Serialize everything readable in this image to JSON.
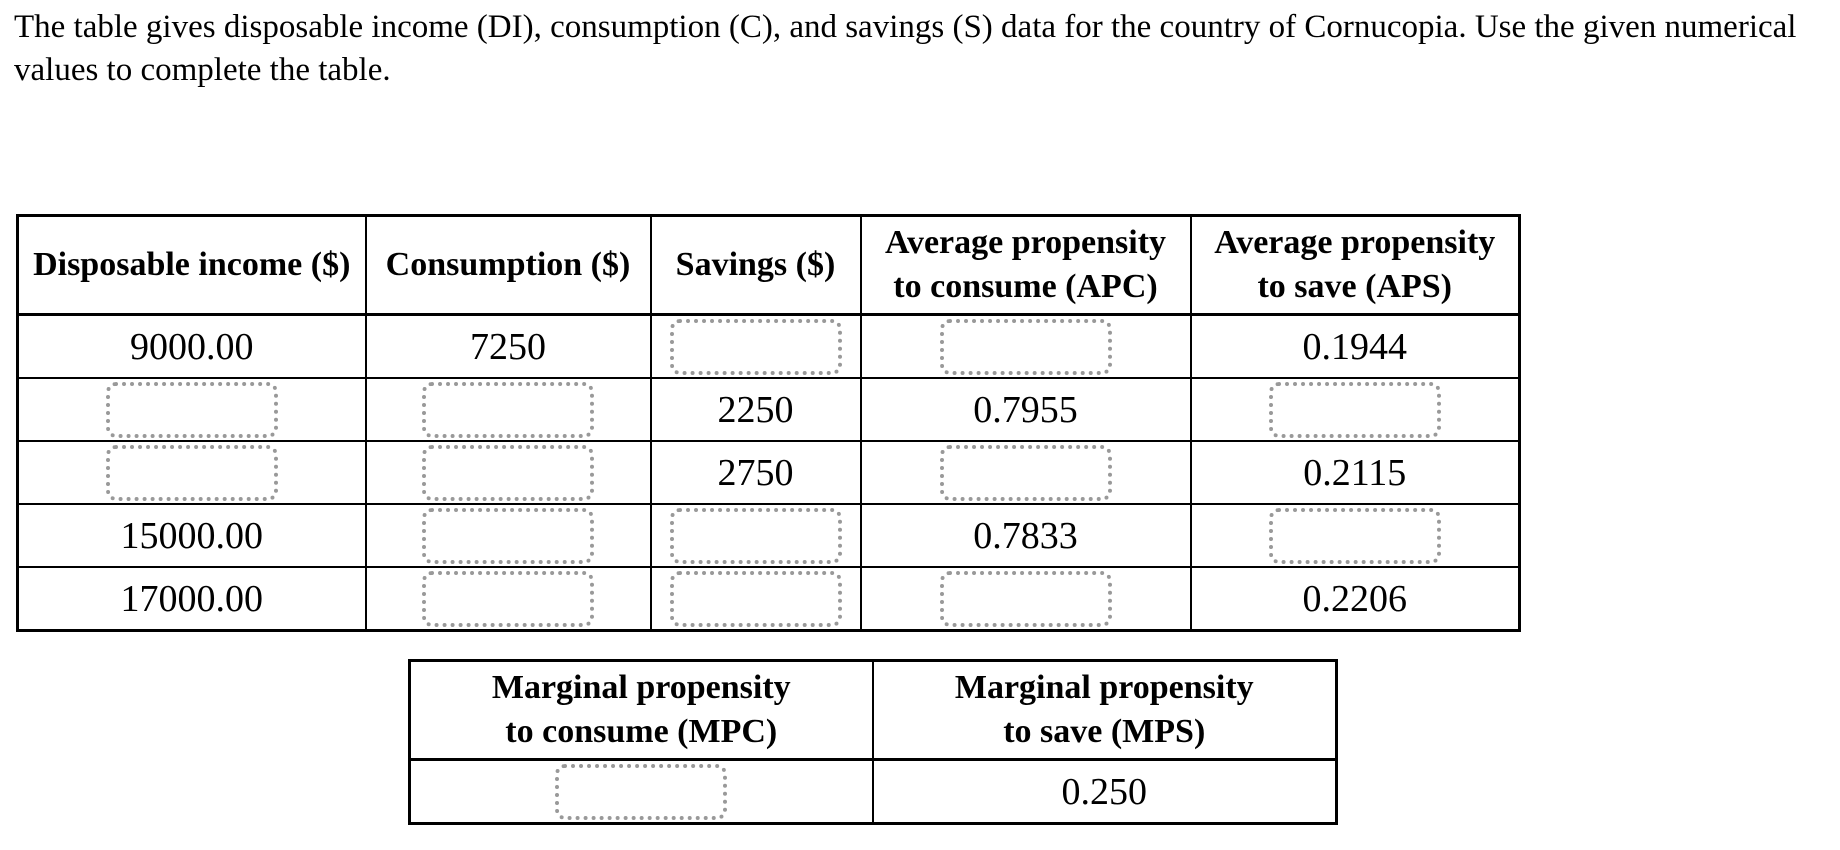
{
  "intro": {
    "text": "The table gives disposable income (DI), consumption (C), and savings (S) data for the country of Cornucopia. Use the given numerical values to complete the table."
  },
  "colors": {
    "background": "#ffffff",
    "text": "#000000",
    "table_border": "#000000",
    "answer_box_border": "#999999"
  },
  "main_table": {
    "headers": [
      {
        "lines": [
          "Disposable income ($)"
        ]
      },
      {
        "lines": [
          "Consumption ($)"
        ]
      },
      {
        "lines": [
          "Savings ($)"
        ]
      },
      {
        "lines": [
          "Average propensity",
          "to consume (APC)"
        ]
      },
      {
        "lines": [
          "Average propensity",
          "to save (APS)"
        ]
      }
    ],
    "rows": [
      [
        "9000.00",
        "7250",
        null,
        null,
        "0.1944"
      ],
      [
        null,
        null,
        "2250",
        "0.7955",
        null
      ],
      [
        null,
        null,
        "2750",
        null,
        "0.2115"
      ],
      [
        "15000.00",
        null,
        null,
        "0.7833",
        null
      ],
      [
        "17000.00",
        null,
        null,
        null,
        "0.2206"
      ]
    ]
  },
  "mpc_table": {
    "headers": [
      {
        "lines": [
          "Marginal propensity",
          "to consume (MPC)"
        ]
      },
      {
        "lines": [
          "Marginal propensity",
          "to save (MPS)"
        ]
      }
    ],
    "rows": [
      [
        null,
        "0.250"
      ]
    ]
  }
}
